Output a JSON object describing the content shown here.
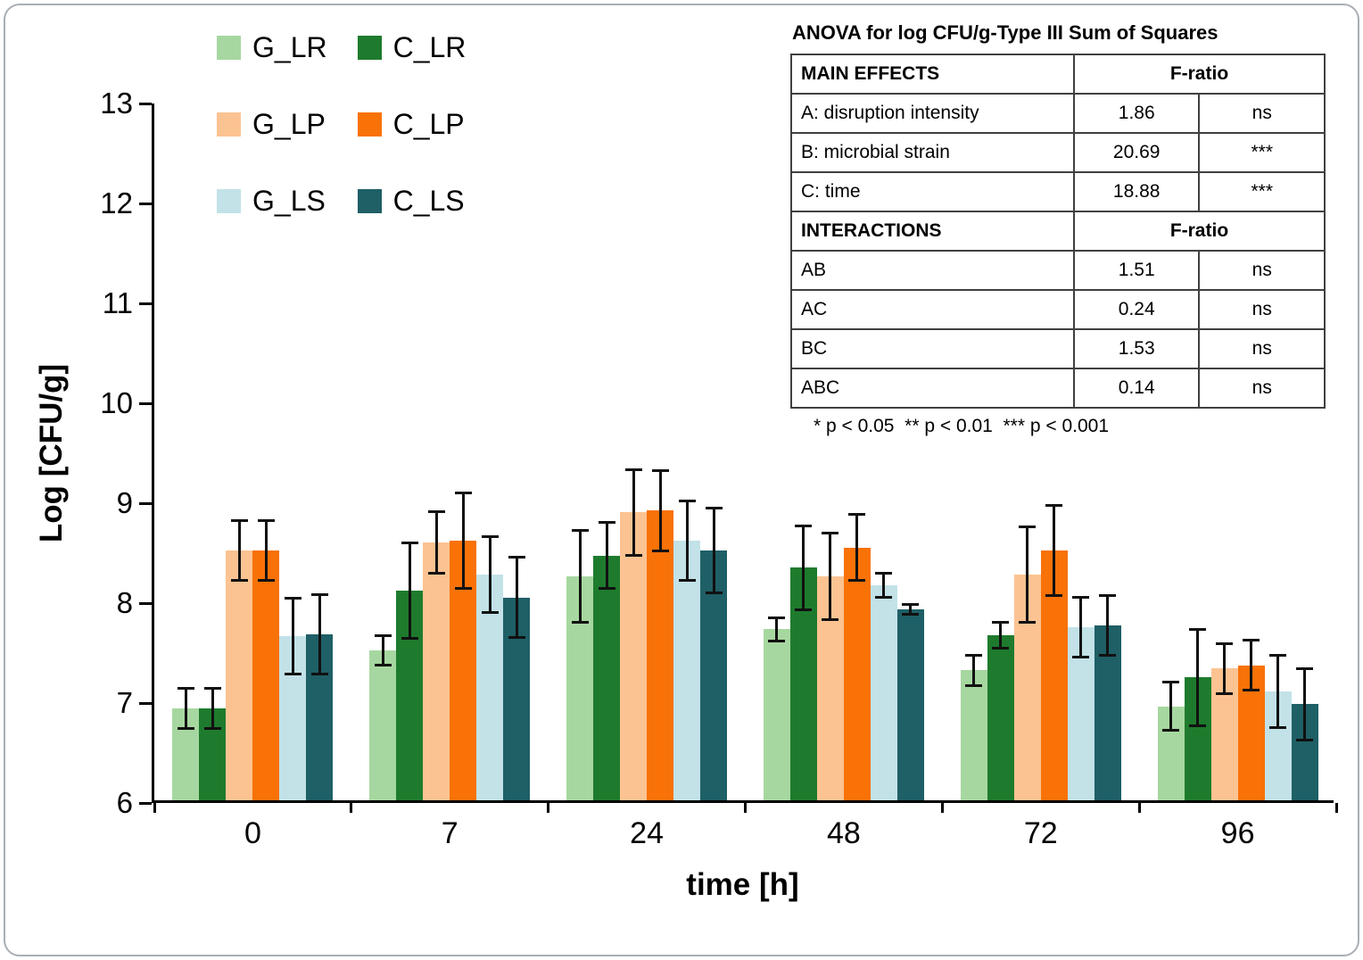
{
  "chart_data": {
    "type": "bar",
    "title": "",
    "xlabel": "time [h]",
    "ylabel": "Log [CFU/g]",
    "ylim": [
      6,
      13
    ],
    "yticks": [
      6,
      7,
      8,
      9,
      10,
      11,
      12,
      13
    ],
    "categories": [
      "0",
      "7",
      "24",
      "48",
      "72",
      "96"
    ],
    "grid": false,
    "legend_position": "top-left",
    "error_bars": true,
    "series": [
      {
        "name": "G_LR",
        "color": "#a7d7a0",
        "values": [
          6.92,
          7.5,
          8.24,
          7.71,
          7.3,
          6.94
        ],
        "errors": [
          0.2,
          0.15,
          0.46,
          0.12,
          0.15,
          0.24
        ]
      },
      {
        "name": "C_LR",
        "color": "#1e7b2d",
        "values": [
          6.92,
          8.1,
          8.45,
          8.33,
          7.65,
          7.23
        ],
        "errors": [
          0.2,
          0.48,
          0.33,
          0.42,
          0.13,
          0.48
        ]
      },
      {
        "name": "G_LP",
        "color": "#fcc392",
        "values": [
          8.5,
          8.58,
          8.88,
          8.24,
          8.26,
          7.32
        ],
        "errors": [
          0.3,
          0.31,
          0.43,
          0.43,
          0.48,
          0.25
        ]
      },
      {
        "name": "C_LP",
        "color": "#f87208",
        "values": [
          8.5,
          8.6,
          8.9,
          8.53,
          8.5,
          7.35
        ],
        "errors": [
          0.3,
          0.48,
          0.4,
          0.33,
          0.45,
          0.25
        ]
      },
      {
        "name": "G_LS",
        "color": "#c2e2e8",
        "values": [
          7.64,
          8.26,
          8.6,
          8.15,
          7.73,
          7.09
        ],
        "errors": [
          0.38,
          0.38,
          0.4,
          0.12,
          0.3,
          0.36
        ]
      },
      {
        "name": "C_LS",
        "color": "#1f5f66",
        "values": [
          7.66,
          8.03,
          8.5,
          7.91,
          7.75,
          6.96
        ],
        "errors": [
          0.4,
          0.4,
          0.42,
          0.05,
          0.3,
          0.36
        ]
      }
    ],
    "colors": {
      "axis": "#000000",
      "error_bar": "#111111"
    }
  },
  "anova": {
    "title": "ANOVA for log CFU/g-Type III Sum of Squares",
    "sections": [
      {
        "header": [
          "MAIN EFFECTS",
          "F-ratio"
        ],
        "rows": [
          [
            "A: disruption intensity",
            "1.86",
            "ns"
          ],
          [
            "B: microbial strain",
            "20.69",
            "***"
          ],
          [
            "C: time",
            "18.88",
            "***"
          ]
        ]
      },
      {
        "header": [
          "INTERACTIONS",
          "F-ratio"
        ],
        "rows": [
          [
            "AB",
            "1.51",
            "ns"
          ],
          [
            "AC",
            "0.24",
            "ns"
          ],
          [
            "BC",
            "1.53",
            "ns"
          ],
          [
            "ABC",
            "0.14",
            "ns"
          ]
        ]
      }
    ],
    "footnote": "* p < 0.05  ** p < 0.01  *** p < 0.001"
  }
}
